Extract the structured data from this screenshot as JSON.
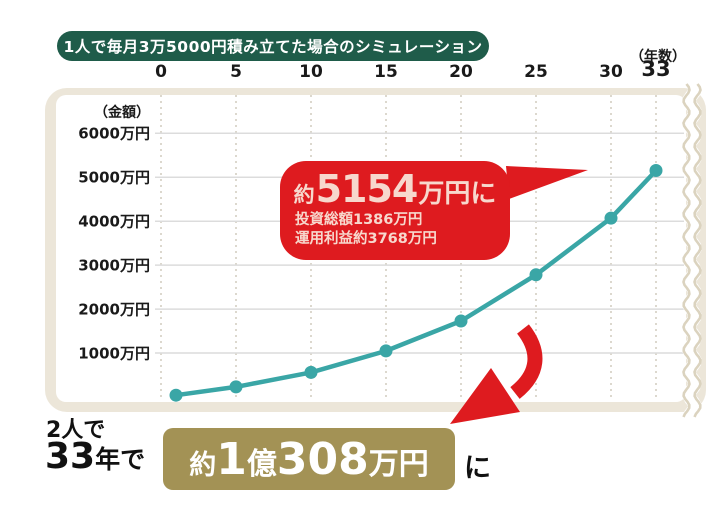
{
  "header": {
    "title": "1人で毎月3万5000円積み立てた場合のシミュレーション"
  },
  "axis": {
    "x_unit": "（年数）",
    "y_unit": "（金額）",
    "x_ticks": [
      "0",
      "5",
      "10",
      "15",
      "20",
      "25",
      "30",
      "33"
    ],
    "y_ticks": [
      "6000万円",
      "5000万円",
      "4000万円",
      "3000万円",
      "2000万円",
      "1000万円"
    ]
  },
  "callout": {
    "prefix": "約",
    "value": "5154",
    "suffix": "万円に",
    "detail1": "投資総額1386万円",
    "detail2": "運用利益約3768万円"
  },
  "footer": {
    "line1": "2人で",
    "line2_number": "33",
    "line2_text": "年で",
    "box": {
      "seg1": "約",
      "seg2": "1",
      "seg3": "億",
      "seg4": "308",
      "seg5": "万円"
    },
    "tail": "に"
  },
  "colors": {
    "header_green": "#1f5c4a",
    "accent_red": "#de1b1f",
    "line_teal": "#3aa6a6",
    "highlight_gold": "#a39255",
    "frame_beige": "#ece6d9",
    "callout_text_pink": "#f7d8cd"
  },
  "chart_data": {
    "type": "line",
    "title": "1人で毎月3万5000円積み立てた場合のシミュレーション",
    "xlabel": "年数",
    "ylabel": "金額（万円）",
    "x": [
      1,
      5,
      10,
      15,
      20,
      25,
      30,
      33
    ],
    "values": [
      40,
      230,
      560,
      1050,
      1730,
      2780,
      4070,
      5154
    ],
    "xlim": [
      0,
      34.5
    ],
    "ylim": [
      0,
      6500
    ],
    "x_tick_years": [
      0,
      5,
      10,
      15,
      20,
      25,
      30,
      33
    ],
    "y_tick_values": [
      1000,
      2000,
      3000,
      4000,
      5000,
      6000
    ],
    "grid": true,
    "axis_break_at_right": true,
    "line_color": "#3aa6a6",
    "annotations": [
      {
        "target_year": 33,
        "target_value": 5154,
        "text": "約5154万円に 投資総額1386万円 運用利益約3768万円"
      },
      {
        "text": "2人で33年で約1億308万円に"
      }
    ]
  }
}
